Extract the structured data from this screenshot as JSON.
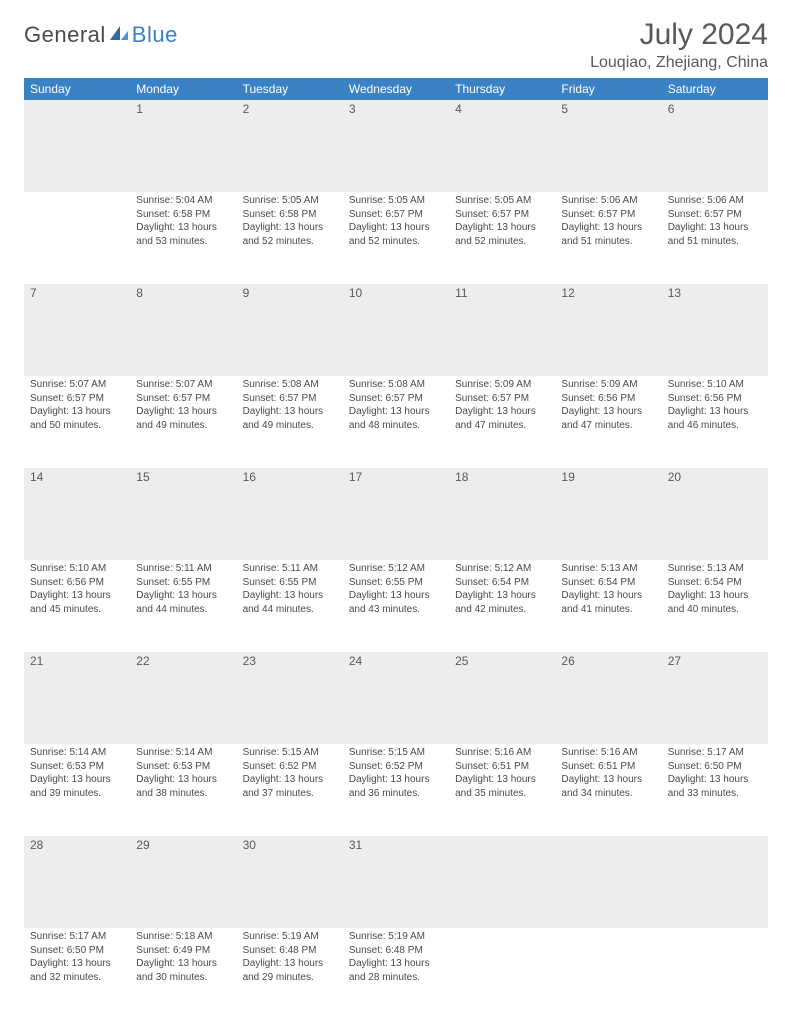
{
  "logo": {
    "general": "General",
    "blue": "Blue"
  },
  "title": "July 2024",
  "subtitle": "Louqiao, Zhejiang, China",
  "colors": {
    "header_bg": "#3b82c4",
    "header_text": "#ffffff",
    "daynum_bg": "#ededed",
    "row_border": "#3b6f9c",
    "body_text": "#4a4a4a",
    "title_text": "#595959"
  },
  "weekdays": [
    "Sunday",
    "Monday",
    "Tuesday",
    "Wednesday",
    "Thursday",
    "Friday",
    "Saturday"
  ],
  "weeks": [
    {
      "nums": [
        "",
        "1",
        "2",
        "3",
        "4",
        "5",
        "6"
      ],
      "cells": [
        null,
        {
          "sunrise": "Sunrise: 5:04 AM",
          "sunset": "Sunset: 6:58 PM",
          "daylight": "Daylight: 13 hours and 53 minutes."
        },
        {
          "sunrise": "Sunrise: 5:05 AM",
          "sunset": "Sunset: 6:58 PM",
          "daylight": "Daylight: 13 hours and 52 minutes."
        },
        {
          "sunrise": "Sunrise: 5:05 AM",
          "sunset": "Sunset: 6:57 PM",
          "daylight": "Daylight: 13 hours and 52 minutes."
        },
        {
          "sunrise": "Sunrise: 5:05 AM",
          "sunset": "Sunset: 6:57 PM",
          "daylight": "Daylight: 13 hours and 52 minutes."
        },
        {
          "sunrise": "Sunrise: 5:06 AM",
          "sunset": "Sunset: 6:57 PM",
          "daylight": "Daylight: 13 hours and 51 minutes."
        },
        {
          "sunrise": "Sunrise: 5:06 AM",
          "sunset": "Sunset: 6:57 PM",
          "daylight": "Daylight: 13 hours and 51 minutes."
        }
      ]
    },
    {
      "nums": [
        "7",
        "8",
        "9",
        "10",
        "11",
        "12",
        "13"
      ],
      "cells": [
        {
          "sunrise": "Sunrise: 5:07 AM",
          "sunset": "Sunset: 6:57 PM",
          "daylight": "Daylight: 13 hours and 50 minutes."
        },
        {
          "sunrise": "Sunrise: 5:07 AM",
          "sunset": "Sunset: 6:57 PM",
          "daylight": "Daylight: 13 hours and 49 minutes."
        },
        {
          "sunrise": "Sunrise: 5:08 AM",
          "sunset": "Sunset: 6:57 PM",
          "daylight": "Daylight: 13 hours and 49 minutes."
        },
        {
          "sunrise": "Sunrise: 5:08 AM",
          "sunset": "Sunset: 6:57 PM",
          "daylight": "Daylight: 13 hours and 48 minutes."
        },
        {
          "sunrise": "Sunrise: 5:09 AM",
          "sunset": "Sunset: 6:57 PM",
          "daylight": "Daylight: 13 hours and 47 minutes."
        },
        {
          "sunrise": "Sunrise: 5:09 AM",
          "sunset": "Sunset: 6:56 PM",
          "daylight": "Daylight: 13 hours and 47 minutes."
        },
        {
          "sunrise": "Sunrise: 5:10 AM",
          "sunset": "Sunset: 6:56 PM",
          "daylight": "Daylight: 13 hours and 46 minutes."
        }
      ]
    },
    {
      "nums": [
        "14",
        "15",
        "16",
        "17",
        "18",
        "19",
        "20"
      ],
      "cells": [
        {
          "sunrise": "Sunrise: 5:10 AM",
          "sunset": "Sunset: 6:56 PM",
          "daylight": "Daylight: 13 hours and 45 minutes."
        },
        {
          "sunrise": "Sunrise: 5:11 AM",
          "sunset": "Sunset: 6:55 PM",
          "daylight": "Daylight: 13 hours and 44 minutes."
        },
        {
          "sunrise": "Sunrise: 5:11 AM",
          "sunset": "Sunset: 6:55 PM",
          "daylight": "Daylight: 13 hours and 44 minutes."
        },
        {
          "sunrise": "Sunrise: 5:12 AM",
          "sunset": "Sunset: 6:55 PM",
          "daylight": "Daylight: 13 hours and 43 minutes."
        },
        {
          "sunrise": "Sunrise: 5:12 AM",
          "sunset": "Sunset: 6:54 PM",
          "daylight": "Daylight: 13 hours and 42 minutes."
        },
        {
          "sunrise": "Sunrise: 5:13 AM",
          "sunset": "Sunset: 6:54 PM",
          "daylight": "Daylight: 13 hours and 41 minutes."
        },
        {
          "sunrise": "Sunrise: 5:13 AM",
          "sunset": "Sunset: 6:54 PM",
          "daylight": "Daylight: 13 hours and 40 minutes."
        }
      ]
    },
    {
      "nums": [
        "21",
        "22",
        "23",
        "24",
        "25",
        "26",
        "27"
      ],
      "cells": [
        {
          "sunrise": "Sunrise: 5:14 AM",
          "sunset": "Sunset: 6:53 PM",
          "daylight": "Daylight: 13 hours and 39 minutes."
        },
        {
          "sunrise": "Sunrise: 5:14 AM",
          "sunset": "Sunset: 6:53 PM",
          "daylight": "Daylight: 13 hours and 38 minutes."
        },
        {
          "sunrise": "Sunrise: 5:15 AM",
          "sunset": "Sunset: 6:52 PM",
          "daylight": "Daylight: 13 hours and 37 minutes."
        },
        {
          "sunrise": "Sunrise: 5:15 AM",
          "sunset": "Sunset: 6:52 PM",
          "daylight": "Daylight: 13 hours and 36 minutes."
        },
        {
          "sunrise": "Sunrise: 5:16 AM",
          "sunset": "Sunset: 6:51 PM",
          "daylight": "Daylight: 13 hours and 35 minutes."
        },
        {
          "sunrise": "Sunrise: 5:16 AM",
          "sunset": "Sunset: 6:51 PM",
          "daylight": "Daylight: 13 hours and 34 minutes."
        },
        {
          "sunrise": "Sunrise: 5:17 AM",
          "sunset": "Sunset: 6:50 PM",
          "daylight": "Daylight: 13 hours and 33 minutes."
        }
      ]
    },
    {
      "nums": [
        "28",
        "29",
        "30",
        "31",
        "",
        "",
        ""
      ],
      "cells": [
        {
          "sunrise": "Sunrise: 5:17 AM",
          "sunset": "Sunset: 6:50 PM",
          "daylight": "Daylight: 13 hours and 32 minutes."
        },
        {
          "sunrise": "Sunrise: 5:18 AM",
          "sunset": "Sunset: 6:49 PM",
          "daylight": "Daylight: 13 hours and 30 minutes."
        },
        {
          "sunrise": "Sunrise: 5:19 AM",
          "sunset": "Sunset: 6:48 PM",
          "daylight": "Daylight: 13 hours and 29 minutes."
        },
        {
          "sunrise": "Sunrise: 5:19 AM",
          "sunset": "Sunset: 6:48 PM",
          "daylight": "Daylight: 13 hours and 28 minutes."
        },
        null,
        null,
        null
      ]
    }
  ]
}
